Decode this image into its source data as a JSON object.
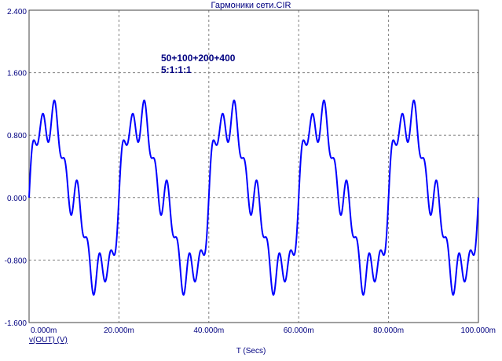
{
  "window": {
    "title": "Гармоники сети.CIR"
  },
  "annotations": {
    "line1": "50+100+200+400",
    "line2": "5:1:1:1"
  },
  "colors": {
    "trace": "#0000ff",
    "text": "#000080",
    "grid": "#808080",
    "frame": "#404040"
  },
  "chart_data": {
    "type": "line",
    "title": "Гармоники сети.CIR",
    "xlabel": "T (Secs)",
    "ylabel": "",
    "xlim": [
      0,
      100
    ],
    "ylim": [
      -1.6,
      2.4
    ],
    "x_unit": "m",
    "x_ticks": [
      0,
      20,
      40,
      60,
      80,
      100
    ],
    "x_tick_labels": [
      "0.000m",
      "20.000m",
      "40.000m",
      "60.000m",
      "80.000m",
      "100.000m"
    ],
    "y_ticks": [
      2.4,
      1.6,
      0.8,
      0.0,
      -0.8,
      -1.6
    ],
    "y_tick_labels": [
      "2.400",
      "1.600",
      "0.800",
      "0.000",
      "-0.800",
      "-1.600"
    ],
    "grid": true,
    "series": [
      {
        "name": "v(OUT) (V)",
        "function": "1.0*sin(2*pi*50*t) + 0.2*sin(2*pi*100*t) + 0.2*sin(2*pi*200*t) + 0.2*sin(2*pi*400*t)",
        "components": [
          {
            "freq_hz": 50,
            "amplitude": 1.0
          },
          {
            "freq_hz": 100,
            "amplitude": 0.2
          },
          {
            "freq_hz": 200,
            "amplitude": 0.2
          },
          {
            "freq_hz": 400,
            "amplitude": 0.2
          }
        ],
        "t_start_ms": 0,
        "t_end_ms": 100
      }
    ]
  }
}
